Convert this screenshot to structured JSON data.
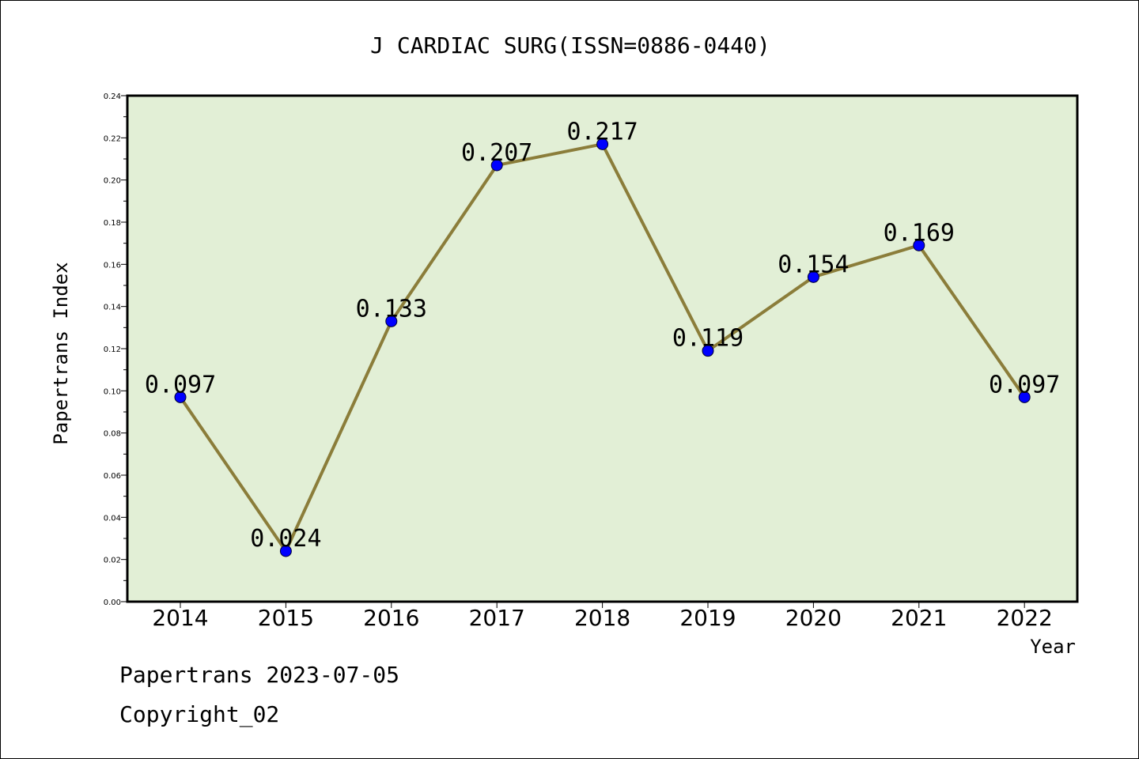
{
  "chart_data": {
    "type": "line",
    "title": "J CARDIAC SURG(ISSN=0886-0440)",
    "xlabel": "Year",
    "ylabel": "Papertrans Index",
    "categories": [
      "2014",
      "2015",
      "2016",
      "2017",
      "2018",
      "2019",
      "2020",
      "2021",
      "2022"
    ],
    "values": [
      0.097,
      0.024,
      0.133,
      0.207,
      0.217,
      0.119,
      0.154,
      0.169,
      0.097
    ],
    "data_labels": [
      "0.097",
      "0.024",
      "0.133",
      "0.207",
      "0.217",
      "0.119",
      "0.154",
      "0.169",
      "0.097"
    ],
    "ylim": [
      0,
      0.24
    ],
    "yticks": [
      "0.00",
      "0.02",
      "0.04",
      "0.06",
      "0.08",
      "0.10",
      "0.12",
      "0.14",
      "0.16",
      "0.18",
      "0.20",
      "0.22",
      "0.24"
    ],
    "grid": false,
    "colors": {
      "plot_background": "#e2efd6",
      "line": "#8b7d3a",
      "marker": "#0000ff"
    }
  },
  "footer": {
    "line1": "Papertrans 2023-07-05",
    "line2": "Copyright_02"
  }
}
